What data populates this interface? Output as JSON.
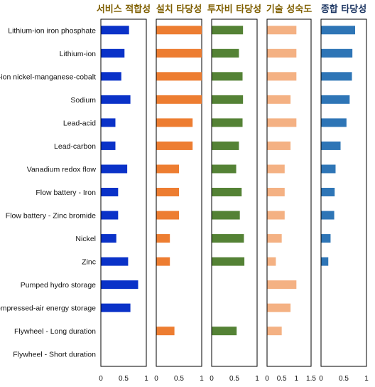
{
  "chart_data": {
    "type": "bar",
    "orientation": "horizontal",
    "categories": [
      "Lithium-ion iron phosphate",
      "Lithium-ion",
      "Lithium-ion nickel-manganese-cobalt",
      "Sodium",
      "Lead-acid",
      "Lead-carbon",
      "Vanadium redox flow",
      "Flow battery - Iron",
      "Flow battery - Zinc bromide",
      "Nickel",
      "Zinc",
      "Pumped hydro storage",
      "Compressed-air energy storage",
      "Flywheel - Long duration",
      "Flywheel - Short duration"
    ],
    "panels": [
      {
        "title": "서비스 적합성",
        "color": "#0a32c8",
        "xlim": [
          0,
          1
        ],
        "ticks": [
          "0",
          "0.5",
          "1"
        ],
        "values": [
          0.62,
          0.52,
          0.45,
          0.65,
          0.32,
          0.32,
          0.58,
          0.38,
          0.38,
          0.34,
          0.6,
          0.82,
          0.65,
          null,
          null
        ]
      },
      {
        "title": "설치 타당성",
        "color": "#ed7d31",
        "xlim": [
          0,
          1
        ],
        "ticks": [
          "0",
          "0.5",
          "1"
        ],
        "values": [
          1.0,
          1.0,
          1.0,
          1.0,
          0.8,
          0.8,
          0.5,
          0.5,
          0.5,
          0.3,
          0.3,
          null,
          null,
          0.4,
          null
        ]
      },
      {
        "title": "투자비 타당성",
        "color": "#548235",
        "xlim": [
          0,
          1
        ],
        "ticks": [
          "0",
          "0.5",
          "1"
        ],
        "values": [
          0.69,
          0.6,
          0.68,
          0.69,
          0.68,
          0.6,
          0.54,
          0.66,
          0.62,
          0.71,
          0.72,
          null,
          null,
          0.55,
          null
        ]
      },
      {
        "title": "기술 성숙도",
        "color": "#f4b183",
        "xlim": [
          0,
          1.5
        ],
        "ticks": [
          "0",
          "0.5",
          "1",
          "1.5"
        ],
        "values": [
          1.0,
          1.0,
          1.0,
          0.8,
          1.0,
          0.8,
          0.6,
          0.6,
          0.6,
          0.5,
          0.3,
          1.0,
          0.8,
          0.5,
          null
        ]
      },
      {
        "title": "종합 타당성",
        "color": "#2e75b6",
        "xlim": [
          0,
          1
        ],
        "ticks": [
          "0",
          "0.5",
          "1"
        ],
        "values": [
          0.75,
          0.69,
          0.68,
          0.63,
          0.56,
          0.43,
          0.32,
          0.3,
          0.29,
          0.21,
          0.16,
          null,
          null,
          null,
          null
        ]
      }
    ],
    "title_color": "#7f5f00"
  }
}
